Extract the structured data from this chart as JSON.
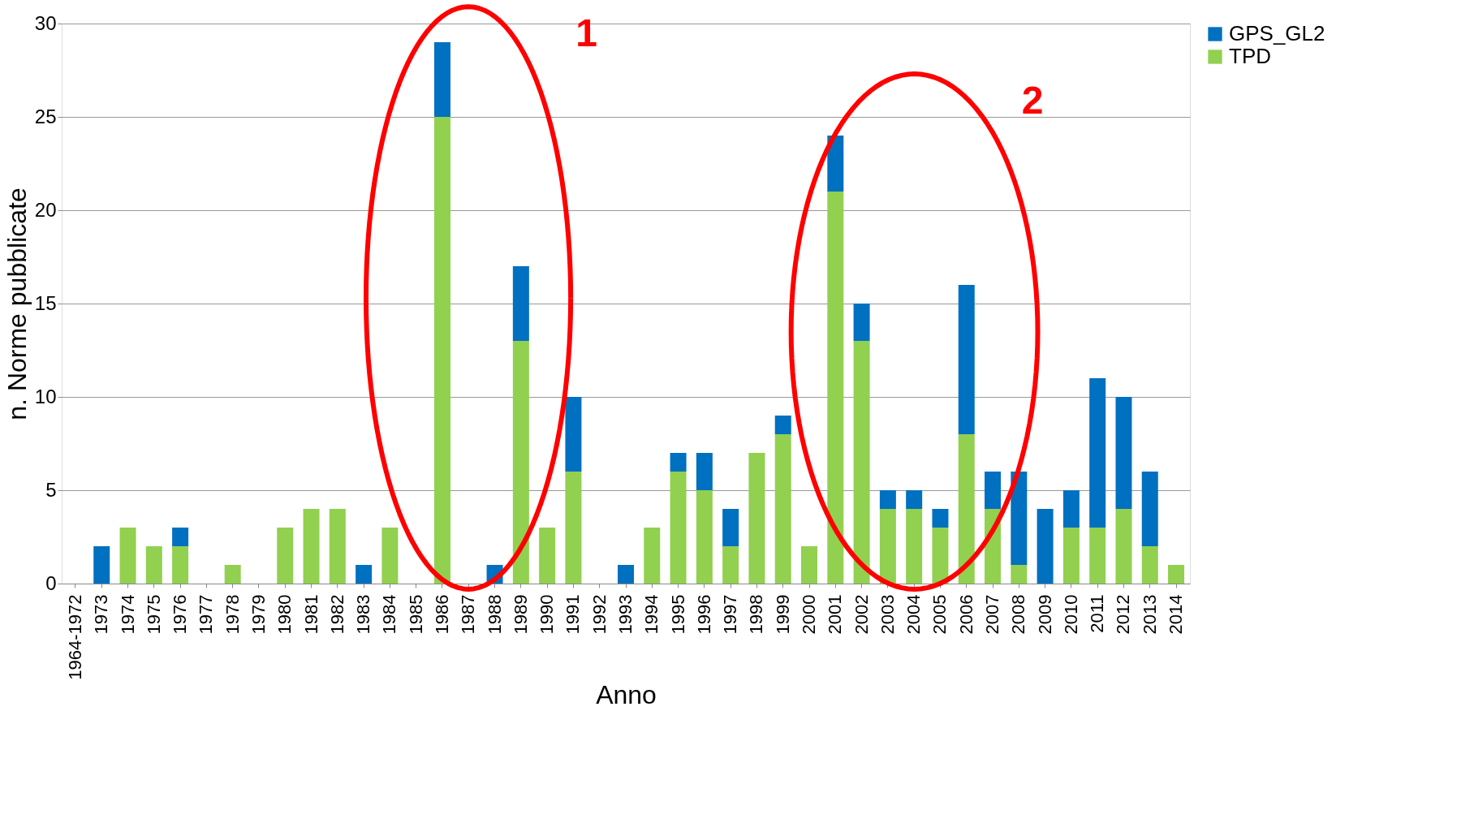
{
  "chart_data": {
    "type": "bar",
    "stacked": true,
    "xlabel": "Anno",
    "ylabel": "n. Norme pubblicate",
    "categories": [
      "1964-1972",
      "1973",
      "1974",
      "1975",
      "1976",
      "1977",
      "1978",
      "1979",
      "1980",
      "1981",
      "1982",
      "1983",
      "1984",
      "1985",
      "1986",
      "1987",
      "1988",
      "1989",
      "1990",
      "1991",
      "1992",
      "1993",
      "1994",
      "1995",
      "1996",
      "1997",
      "1998",
      "1999",
      "2000",
      "2001",
      "2002",
      "2003",
      "2004",
      "2005",
      "2006",
      "2007",
      "2008",
      "2009",
      "2010",
      "2011",
      "2012",
      "2013",
      "2014"
    ],
    "series": [
      {
        "name": "TPD",
        "color": "#92d050",
        "values": [
          0,
          0,
          3,
          2,
          2,
          0,
          1,
          0,
          3,
          4,
          4,
          0,
          3,
          0,
          25,
          0,
          0,
          13,
          3,
          6,
          0,
          0,
          3,
          6,
          5,
          2,
          7,
          8,
          2,
          21,
          13,
          4,
          4,
          3,
          8,
          4,
          1,
          0,
          3,
          3,
          4,
          2,
          1
        ]
      },
      {
        "name": "GPS_GL2",
        "color": "#0070c0",
        "values": [
          0,
          2,
          0,
          0,
          1,
          0,
          0,
          0,
          0,
          0,
          0,
          1,
          0,
          0,
          4,
          0,
          1,
          4,
          0,
          4,
          0,
          1,
          0,
          1,
          2,
          2,
          0,
          1,
          0,
          3,
          2,
          1,
          1,
          1,
          8,
          2,
          5,
          4,
          2,
          8,
          6,
          4,
          0
        ]
      }
    ],
    "ylim": [
      0,
      30
    ],
    "yticks": [
      0,
      5,
      10,
      15,
      20,
      25,
      30
    ],
    "grid": "y",
    "legend": "right",
    "annotations": [
      "1",
      "2"
    ]
  }
}
